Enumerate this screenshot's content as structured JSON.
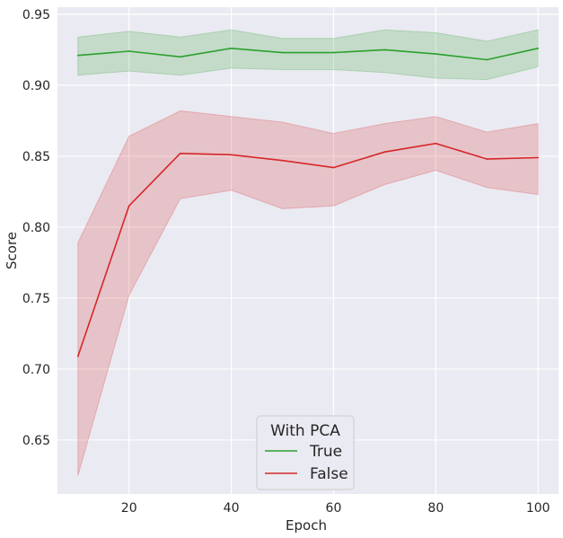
{
  "chart_data": {
    "type": "line",
    "title": "",
    "xlabel": "Epoch",
    "ylabel": "Score",
    "xlim": [
      6,
      104
    ],
    "ylim": [
      0.612,
      0.955
    ],
    "x_ticks": [
      20,
      40,
      60,
      80,
      100
    ],
    "x_tick_labels": [
      "20",
      "40",
      "60",
      "80",
      "100"
    ],
    "y_ticks": [
      0.65,
      0.7,
      0.75,
      0.8,
      0.85,
      0.9,
      0.95
    ],
    "y_tick_labels": [
      "0.65",
      "0.70",
      "0.75",
      "0.80",
      "0.85",
      "0.90",
      "0.95"
    ],
    "grid": true,
    "x": [
      10,
      20,
      30,
      40,
      50,
      60,
      70,
      80,
      90,
      100
    ],
    "series": [
      {
        "name": "True",
        "color": "#2ca02c",
        "values": [
          0.921,
          0.924,
          0.92,
          0.926,
          0.923,
          0.923,
          0.925,
          0.922,
          0.918,
          0.926
        ],
        "lower": [
          0.907,
          0.91,
          0.907,
          0.912,
          0.911,
          0.911,
          0.909,
          0.905,
          0.904,
          0.913
        ],
        "upper": [
          0.934,
          0.938,
          0.934,
          0.939,
          0.933,
          0.933,
          0.939,
          0.937,
          0.931,
          0.939
        ]
      },
      {
        "name": "False",
        "color": "#d62728",
        "values": [
          0.709,
          0.815,
          0.852,
          0.851,
          0.847,
          0.842,
          0.853,
          0.859,
          0.848,
          0.849
        ],
        "lower": [
          0.625,
          0.752,
          0.82,
          0.826,
          0.813,
          0.815,
          0.83,
          0.84,
          0.828,
          0.823
        ],
        "upper": [
          0.789,
          0.864,
          0.882,
          0.878,
          0.874,
          0.866,
          0.873,
          0.878,
          0.867,
          0.873
        ]
      }
    ],
    "legend": {
      "title": "With PCA",
      "placement": "bottom-center",
      "entries": [
        "True",
        "False"
      ]
    }
  }
}
